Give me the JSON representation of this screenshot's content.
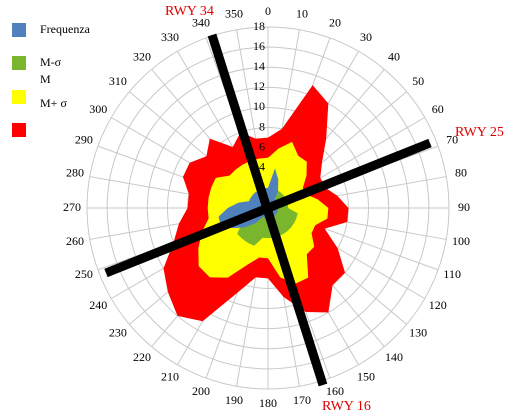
{
  "chart_data": {
    "type": "radar",
    "categories": [
      0,
      10,
      20,
      30,
      40,
      50,
      60,
      70,
      80,
      90,
      100,
      110,
      120,
      130,
      140,
      150,
      160,
      170,
      180,
      190,
      200,
      210,
      220,
      230,
      240,
      250,
      260,
      270,
      280,
      290,
      300,
      310,
      320,
      330,
      340,
      350
    ],
    "rlim": [
      0,
      18
    ],
    "rticks": [
      2,
      4,
      6,
      8,
      10,
      12,
      14,
      16,
      18
    ],
    "grid": true,
    "series": [
      {
        "name": "M+ σ",
        "color": "#ff0000",
        "values": [
          7,
          8,
          13,
          12,
          9,
          7,
          6,
          6,
          7,
          8,
          8,
          6,
          8,
          10,
          10,
          12,
          11,
          9,
          7,
          7,
          9,
          13,
          14,
          13,
          12,
          10,
          9,
          8,
          8,
          9,
          9,
          8,
          9,
          7,
          8,
          7
        ]
      },
      {
        "name": "M",
        "color": "#ffff00",
        "values": [
          5,
          6,
          7,
          6,
          6,
          5,
          4,
          4,
          5,
          6,
          6,
          5,
          5,
          6,
          6,
          8,
          8,
          7,
          5,
          5,
          6,
          8,
          9,
          9,
          8,
          7,
          6,
          6,
          6,
          6,
          6,
          5,
          5,
          5,
          5,
          5
        ]
      },
      {
        "name": "M-σ",
        "color": "#7ab52e",
        "values": [
          2,
          2,
          2,
          2,
          2,
          2,
          2,
          2,
          2,
          2,
          3,
          3,
          3,
          3,
          3,
          3,
          3,
          3,
          3,
          3,
          4,
          4,
          4,
          4,
          3,
          3,
          3,
          2,
          2,
          2,
          2,
          2,
          2,
          2,
          2,
          2
        ]
      },
      {
        "name": "Frequenza",
        "color": "#4f81bd",
        "values": [
          2,
          4,
          3,
          2,
          1,
          1,
          1,
          1,
          1,
          1,
          1,
          1,
          1,
          1,
          1,
          1,
          1,
          1,
          1,
          1,
          1,
          1,
          2,
          3,
          4,
          5,
          5,
          4,
          3,
          2,
          2,
          2,
          2,
          2,
          2,
          2
        ]
      }
    ],
    "annotations": [
      "RWY 34",
      "RWY 25",
      "RWY 16"
    ]
  }
}
